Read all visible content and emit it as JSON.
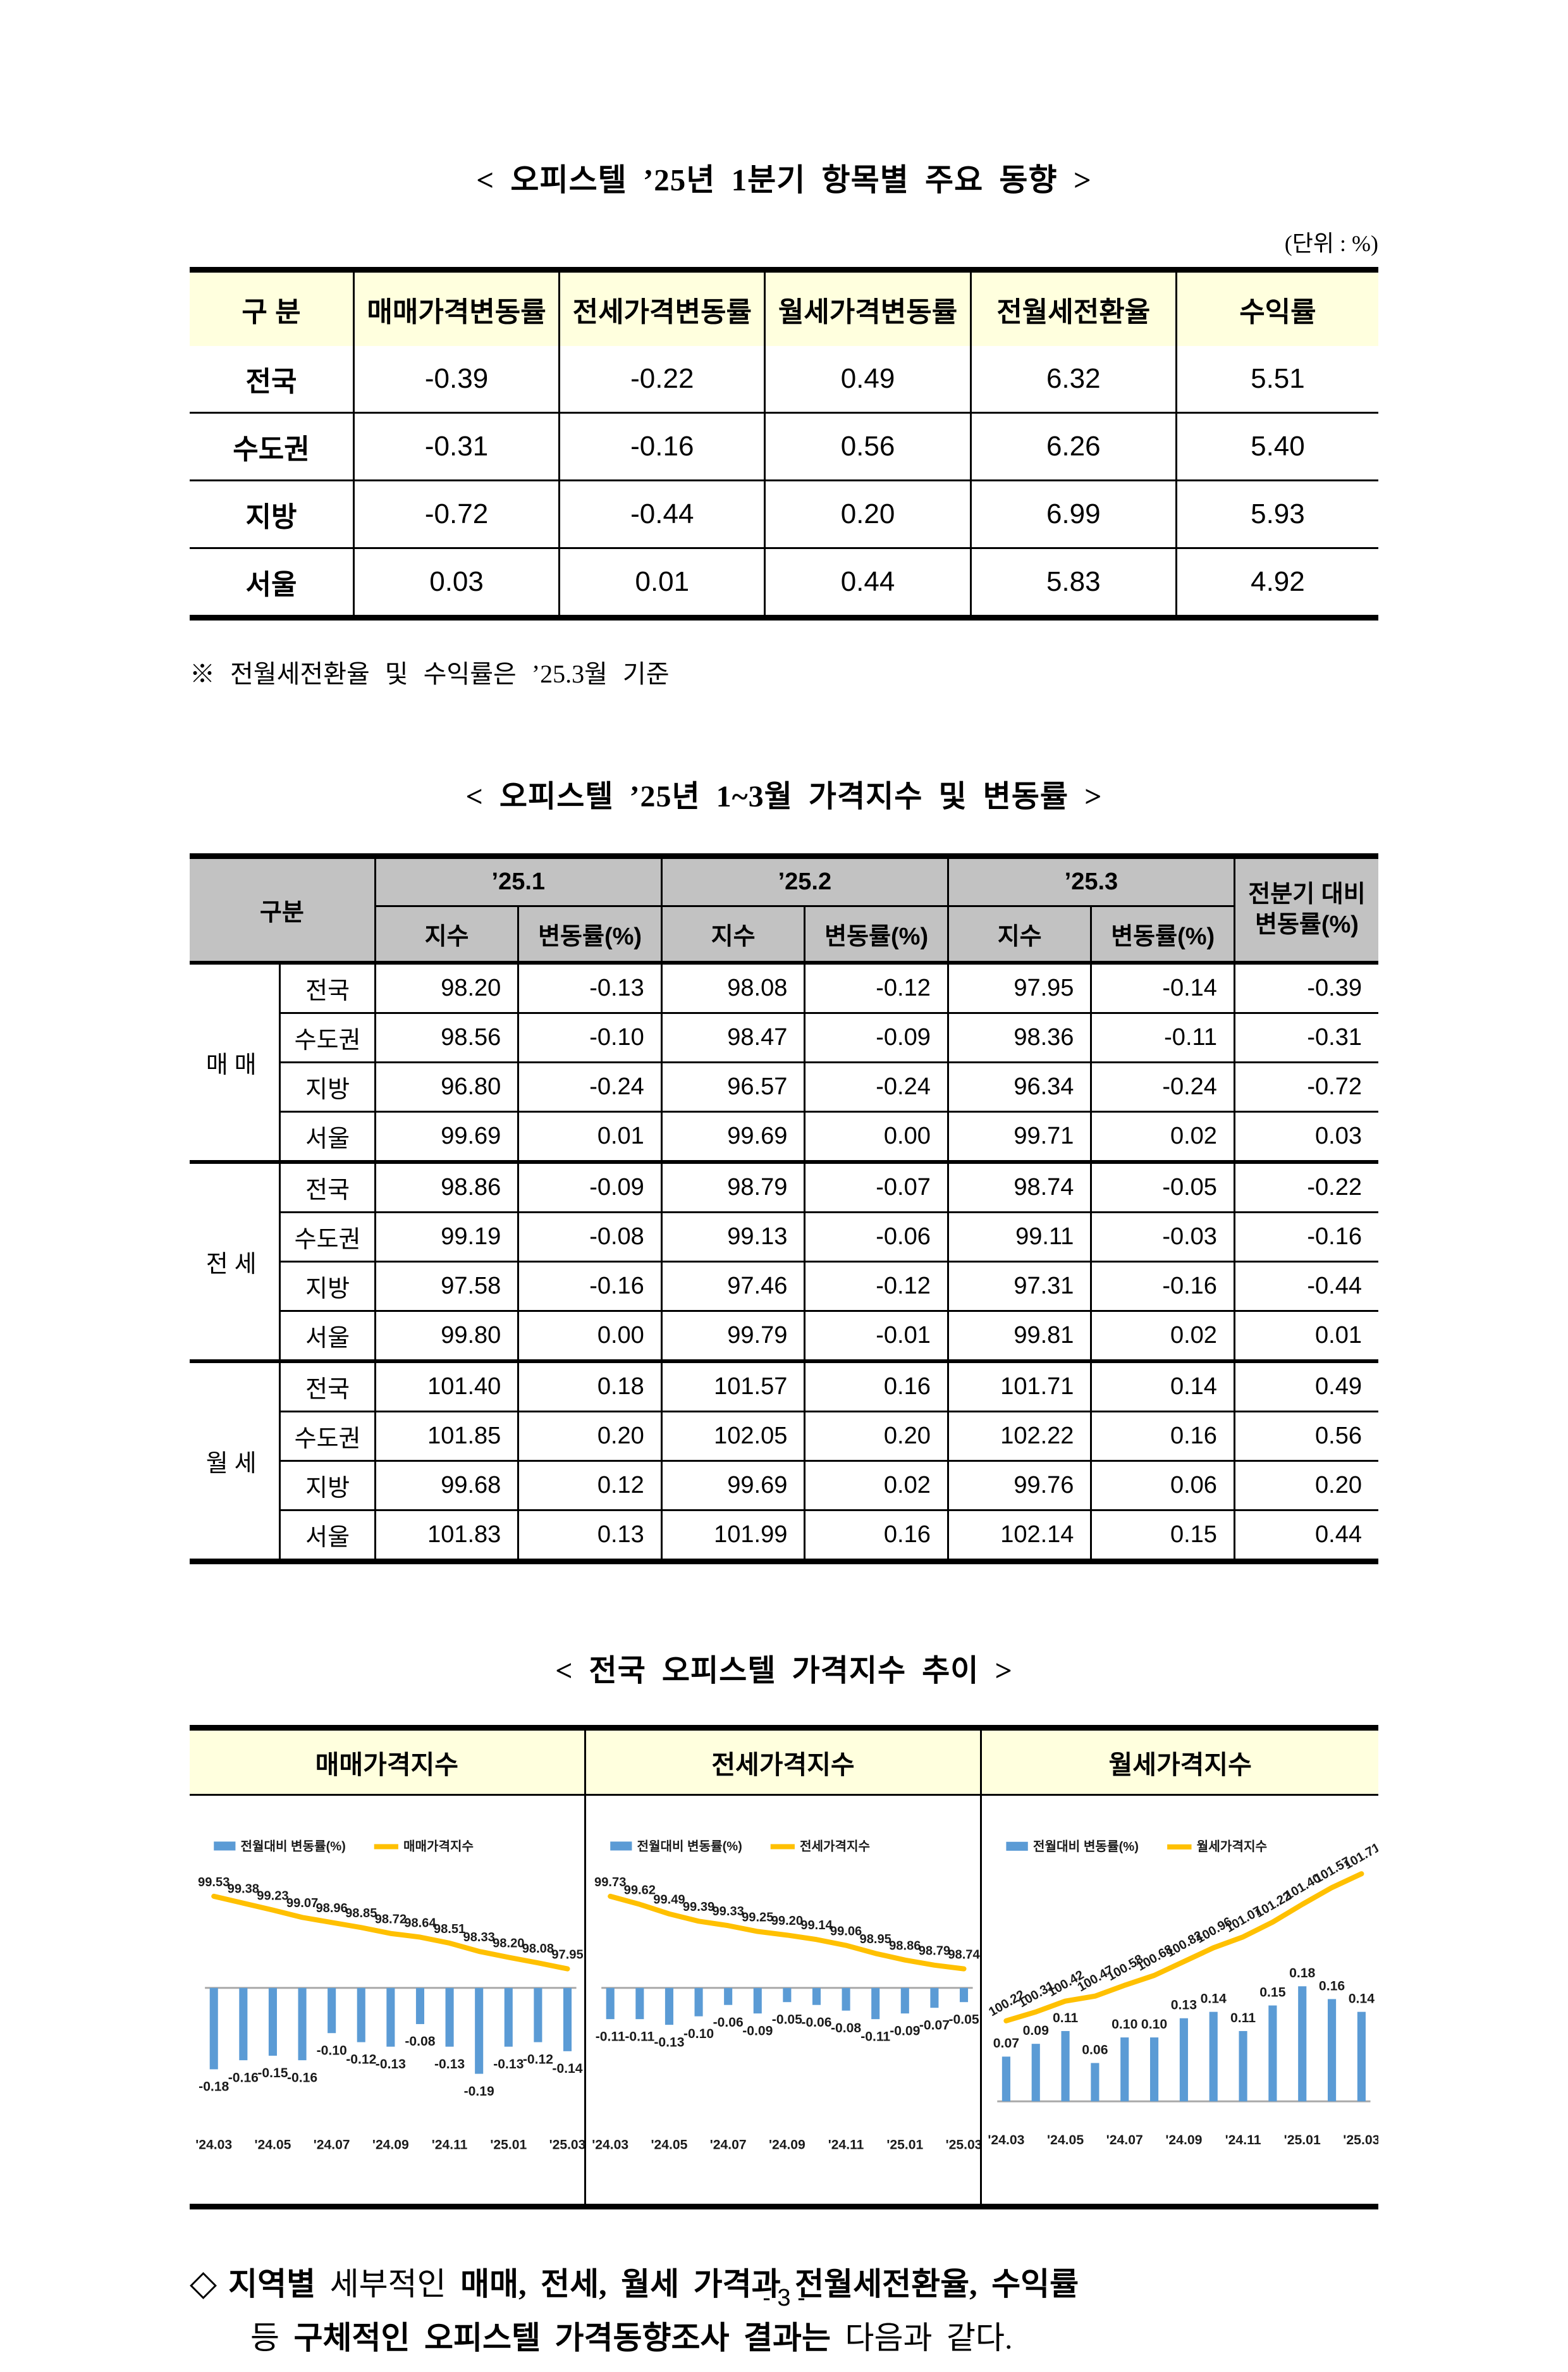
{
  "page": {
    "title1": "< 오피스텔 ’25년 1분기 항목별 주요 동향 >",
    "unit_note": "(단위 : %)",
    "footnote": "※ 전월세전환율 및 수익률은 ’25.3월 기준",
    "title2": "< 오피스텔 ’25년 1~3월 가격지수 및 변동률 >",
    "title3": "< 전국 오피스텔 가격지수 추이 >",
    "page_number": "- 3 -"
  },
  "table1": {
    "headers": [
      "구 분",
      "매매가격변동률",
      "전세가격변동률",
      "월세가격변동률",
      "전월세전환율",
      "수익률"
    ],
    "rows": [
      {
        "label": "전국",
        "values": [
          "-0.39",
          "-0.22",
          "0.49",
          "6.32",
          "5.51"
        ]
      },
      {
        "label": "수도권",
        "values": [
          "-0.31",
          "-0.16",
          "0.56",
          "6.26",
          "5.40"
        ]
      },
      {
        "label": "지방",
        "values": [
          "-0.72",
          "-0.44",
          "0.20",
          "6.99",
          "5.93"
        ]
      },
      {
        "label": "서울",
        "values": [
          "0.03",
          "0.01",
          "0.44",
          "5.83",
          "4.92"
        ]
      }
    ]
  },
  "table2": {
    "corner_header": "구분",
    "month_headers": [
      "’25.1",
      "’25.2",
      "’25.3"
    ],
    "sub_headers": [
      "지수",
      "변동률(%)"
    ],
    "quarter_header_line1": "전분기 대비",
    "quarter_header_line2": "변동률(%)",
    "groups": [
      {
        "name": "매매",
        "rows": [
          {
            "region": "전국",
            "values": [
              "98.20",
              "-0.13",
              "98.08",
              "-0.12",
              "97.95",
              "-0.14",
              "-0.39"
            ]
          },
          {
            "region": "수도권",
            "values": [
              "98.56",
              "-0.10",
              "98.47",
              "-0.09",
              "98.36",
              "-0.11",
              "-0.31"
            ]
          },
          {
            "region": "지방",
            "values": [
              "96.80",
              "-0.24",
              "96.57",
              "-0.24",
              "96.34",
              "-0.24",
              "-0.72"
            ]
          },
          {
            "region": "서울",
            "values": [
              "99.69",
              "0.01",
              "99.69",
              "0.00",
              "99.71",
              "0.02",
              "0.03"
            ]
          }
        ]
      },
      {
        "name": "전세",
        "rows": [
          {
            "region": "전국",
            "values": [
              "98.86",
              "-0.09",
              "98.79",
              "-0.07",
              "98.74",
              "-0.05",
              "-0.22"
            ]
          },
          {
            "region": "수도권",
            "values": [
              "99.19",
              "-0.08",
              "99.13",
              "-0.06",
              "99.11",
              "-0.03",
              "-0.16"
            ]
          },
          {
            "region": "지방",
            "values": [
              "97.58",
              "-0.16",
              "97.46",
              "-0.12",
              "97.31",
              "-0.16",
              "-0.44"
            ]
          },
          {
            "region": "서울",
            "values": [
              "99.80",
              "0.00",
              "99.79",
              "-0.01",
              "99.81",
              "0.02",
              "0.01"
            ]
          }
        ]
      },
      {
        "name": "월세",
        "rows": [
          {
            "region": "전국",
            "values": [
              "101.40",
              "0.18",
              "101.57",
              "0.16",
              "101.71",
              "0.14",
              "0.49"
            ]
          },
          {
            "region": "수도권",
            "values": [
              "101.85",
              "0.20",
              "102.05",
              "0.20",
              "102.22",
              "0.16",
              "0.56"
            ]
          },
          {
            "region": "지방",
            "values": [
              "99.68",
              "0.12",
              "99.69",
              "0.02",
              "99.76",
              "0.06",
              "0.20"
            ]
          },
          {
            "region": "서울",
            "values": [
              "101.83",
              "0.13",
              "101.99",
              "0.16",
              "102.14",
              "0.15",
              "0.44"
            ]
          }
        ]
      }
    ]
  },
  "charts_panel": {
    "headers": [
      "매매가격지수",
      "전세가격지수",
      "월세가격지수"
    ]
  },
  "chart_data": [
    {
      "type": "bar",
      "subtype": "bar+line",
      "title": "매매가격지수",
      "legend": [
        "전월대비 변동률(%)",
        "매매가격지수"
      ],
      "x": [
        "'24.03",
        "'24.04",
        "'24.05",
        "'24.06",
        "'24.07",
        "'24.08",
        "'24.09",
        "'24.10",
        "'24.11",
        "'24.12",
        "'25.01",
        "'25.02",
        "'25.03"
      ],
      "x_tick_labels": [
        "'24.03",
        "'24.05",
        "'24.07",
        "'24.09",
        "'24.11",
        "'25.01",
        "'25.03"
      ],
      "bars": [
        -0.18,
        -0.16,
        -0.15,
        -0.16,
        -0.1,
        -0.12,
        -0.13,
        -0.08,
        -0.13,
        -0.19,
        -0.13,
        -0.12,
        -0.14
      ],
      "bar_labels": [
        "-0.18",
        "-0.16",
        "-0.15",
        "-0.16",
        "-0.10",
        "-0.12",
        "-0.13",
        "-0.08",
        "-0.13",
        "-0.19",
        "-0.13",
        "-0.12",
        "-0.14"
      ],
      "line": [
        99.53,
        99.38,
        99.23,
        99.07,
        98.96,
        98.85,
        98.72,
        98.64,
        98.51,
        98.33,
        98.2,
        98.08,
        97.95
      ],
      "line_labels": [
        "99.53",
        "99.38",
        "99.23",
        "99.07",
        "98.96",
        "98.85",
        "98.72",
        "98.64",
        "98.51",
        "98.33",
        "98.20",
        "98.08",
        "97.95"
      ],
      "bar_direction": "down",
      "bar_color": "#5B9BD5",
      "line_color": "#FFC000"
    },
    {
      "type": "bar",
      "subtype": "bar+line",
      "title": "전세가격지수",
      "legend": [
        "전월대비 변동률(%)",
        "전세가격지수"
      ],
      "x": [
        "'24.03",
        "'24.04",
        "'24.05",
        "'24.06",
        "'24.07",
        "'24.08",
        "'24.09",
        "'24.10",
        "'24.11",
        "'24.12",
        "'25.01",
        "'25.02",
        "'25.03"
      ],
      "x_tick_labels": [
        "'24.03",
        "'24.05",
        "'24.07",
        "'24.09",
        "'24.11",
        "'25.01",
        "'25.03"
      ],
      "bars": [
        -0.11,
        -0.11,
        -0.13,
        -0.1,
        -0.06,
        -0.09,
        -0.05,
        -0.06,
        -0.08,
        -0.11,
        -0.09,
        -0.07,
        -0.05
      ],
      "bar_labels": [
        "-0.11",
        "-0.11",
        "-0.13",
        "-0.10",
        "-0.06",
        "-0.09",
        "-0.05",
        "-0.06",
        "-0.08",
        "-0.11",
        "-0.09",
        "-0.07",
        "-0.05"
      ],
      "line": [
        99.73,
        99.62,
        99.49,
        99.39,
        99.33,
        99.25,
        99.2,
        99.14,
        99.06,
        98.95,
        98.86,
        98.79,
        98.74
      ],
      "line_labels": [
        "99.73",
        "99.62",
        "99.49",
        "99.39",
        "99.33",
        "99.25",
        "99.20",
        "99.14",
        "99.06",
        "98.95",
        "98.86",
        "98.79",
        "98.74"
      ],
      "bar_direction": "down",
      "bar_color": "#5B9BD5",
      "line_color": "#FFC000"
    },
    {
      "type": "bar",
      "subtype": "bar+line",
      "title": "월세가격지수",
      "legend": [
        "전월대비 변동률(%)",
        "월세가격지수"
      ],
      "x": [
        "'24.03",
        "'24.04",
        "'24.05",
        "'24.06",
        "'24.07",
        "'24.08",
        "'24.09",
        "'24.10",
        "'24.11",
        "'24.12",
        "'25.01",
        "'25.02",
        "'25.03"
      ],
      "x_tick_labels": [
        "'24.03",
        "'24.05",
        "'24.07",
        "'24.09",
        "'24.11",
        "'25.01",
        "'25.03"
      ],
      "bars": [
        0.07,
        0.09,
        0.11,
        0.06,
        0.1,
        0.1,
        0.13,
        0.14,
        0.11,
        0.15,
        0.18,
        0.16,
        0.14
      ],
      "bar_labels": [
        "0.07",
        "0.09",
        "0.11",
        "0.06",
        "0.10",
        "0.10",
        "0.13",
        "0.14",
        "0.11",
        "0.15",
        "0.18",
        "0.16",
        "0.14"
      ],
      "line": [
        100.22,
        100.31,
        100.42,
        100.47,
        100.58,
        100.68,
        100.82,
        100.96,
        101.07,
        101.22,
        101.4,
        101.57,
        101.71
      ],
      "line_labels": [
        "100.22",
        "100.31",
        "100.42",
        "100.47",
        "100.58",
        "100.68",
        "100.82",
        "100.96",
        "101.07",
        "101.22",
        "101.40",
        "101.57",
        "101.71"
      ],
      "bar_direction": "up",
      "bar_color": "#5B9BD5",
      "line_color": "#FFC000"
    }
  ],
  "closing": {
    "line1": [
      {
        "t": "지역별",
        "b": true
      },
      {
        "t": " 세부적인 ",
        "b": false
      },
      {
        "t": "매매, 전세, 월세 가격과 전월세전환율, 수익률",
        "b": true
      }
    ],
    "line2": [
      {
        "t": "등 ",
        "b": false
      },
      {
        "t": "구체적인 오피스텔 가격동향조사 결과는",
        "b": true
      },
      {
        "t": " 다음과 같다.",
        "b": false
      }
    ],
    "bullet": "◇"
  }
}
